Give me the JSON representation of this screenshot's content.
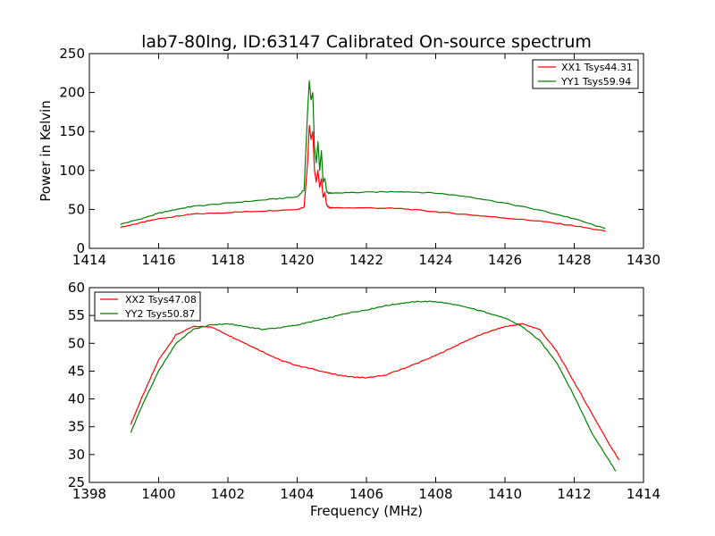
{
  "title": "lab7-80lng, ID:63147 Calibrated On-source spectrum",
  "colors": {
    "xx": "#ff0000",
    "yy": "#008000"
  },
  "chart_data": [
    {
      "type": "line",
      "ylabel": "Power in Kelvin",
      "xlabel": "",
      "xlim": [
        1414,
        1430
      ],
      "ylim": [
        0,
        250
      ],
      "xticks": [
        "1414",
        "1416",
        "1418",
        "1420",
        "1422",
        "1424",
        "1426",
        "1428",
        "1430"
      ],
      "yticks": [
        "0",
        "50",
        "100",
        "150",
        "200",
        "250"
      ],
      "legend_position": "top-right",
      "grid": false,
      "series": [
        {
          "name": "XX1 Tsys44.31",
          "color": "#ff0000",
          "x": [
            1414.9,
            1415.5,
            1416,
            1416.5,
            1417,
            1418,
            1419,
            1420,
            1420.2,
            1420.3,
            1420.35,
            1420.4,
            1420.45,
            1420.5,
            1420.55,
            1420.6,
            1420.65,
            1420.7,
            1420.75,
            1420.8,
            1420.85,
            1420.9,
            1420.95,
            1421,
            1422,
            1423,
            1424,
            1425,
            1426,
            1427,
            1428,
            1428.9
          ],
          "y": [
            27,
            33,
            38,
            41,
            44,
            46,
            48,
            50,
            53,
            110,
            158,
            140,
            150,
            100,
            85,
            100,
            78,
            90,
            65,
            72,
            56,
            53,
            52,
            52,
            52,
            51,
            47,
            43,
            39,
            35,
            29,
            22
          ]
        },
        {
          "name": "YY1 Tsys59.94",
          "color": "#008000",
          "x": [
            1414.9,
            1415.5,
            1416,
            1416.5,
            1417,
            1418,
            1419,
            1420,
            1420.2,
            1420.3,
            1420.35,
            1420.4,
            1420.45,
            1420.5,
            1420.55,
            1420.6,
            1420.65,
            1420.7,
            1420.75,
            1420.8,
            1420.85,
            1420.9,
            1420.95,
            1421,
            1422,
            1423,
            1424,
            1425,
            1426,
            1427,
            1428,
            1428.9
          ],
          "y": [
            31,
            38,
            45,
            50,
            54,
            58,
            62,
            66,
            75,
            175,
            215,
            190,
            200,
            130,
            110,
            137,
            100,
            125,
            85,
            90,
            73,
            71,
            71,
            71,
            72,
            73,
            71,
            66,
            58,
            49,
            38,
            25
          ]
        }
      ]
    },
    {
      "type": "line",
      "ylabel": "",
      "xlabel": "Frequency (MHz)",
      "xlim": [
        1398,
        1414
      ],
      "ylim": [
        25,
        60
      ],
      "xticks": [
        "1398",
        "1400",
        "1402",
        "1404",
        "1406",
        "1408",
        "1410",
        "1412",
        "1414"
      ],
      "yticks": [
        "25",
        "30",
        "35",
        "40",
        "45",
        "50",
        "55",
        "60"
      ],
      "legend_position": "top-left",
      "grid": false,
      "series": [
        {
          "name": "XX2 Tsys47.08",
          "color": "#ff0000",
          "x": [
            1399.2,
            1399.5,
            1400,
            1400.5,
            1401,
            1401.5,
            1402,
            1402.5,
            1403,
            1403.5,
            1404,
            1404.5,
            1405,
            1405.5,
            1406,
            1406.5,
            1407,
            1407.5,
            1408,
            1408.5,
            1409,
            1409.5,
            1410,
            1410.5,
            1411,
            1411.5,
            1412,
            1412.5,
            1413,
            1413.3
          ],
          "y": [
            35.5,
            40,
            47,
            51.5,
            53,
            53,
            51.5,
            50,
            48.5,
            47,
            46,
            45.3,
            44.5,
            44,
            43.8,
            44.2,
            45.3,
            46.5,
            47.8,
            49.3,
            50.8,
            52,
            53,
            53.5,
            52.5,
            48.5,
            43,
            37.5,
            32,
            29
          ]
        },
        {
          "name": "YY2 Tsys50.87",
          "color": "#008000",
          "x": [
            1399.2,
            1399.5,
            1400,
            1400.5,
            1401,
            1401.5,
            1402,
            1402.5,
            1403,
            1403.5,
            1404,
            1404.5,
            1405,
            1405.5,
            1406,
            1406.5,
            1407,
            1407.5,
            1408,
            1408.5,
            1409,
            1409.5,
            1410,
            1410.5,
            1411,
            1411.5,
            1412,
            1412.5,
            1413,
            1413.2
          ],
          "y": [
            34,
            38.5,
            45,
            50,
            52.5,
            53.3,
            53.5,
            53,
            52.5,
            52.8,
            53.3,
            54,
            54.7,
            55.5,
            56,
            56.7,
            57.2,
            57.5,
            57.5,
            57,
            56.3,
            55.5,
            54.5,
            53,
            50.5,
            46.5,
            40.5,
            34,
            29,
            27
          ]
        }
      ]
    }
  ]
}
